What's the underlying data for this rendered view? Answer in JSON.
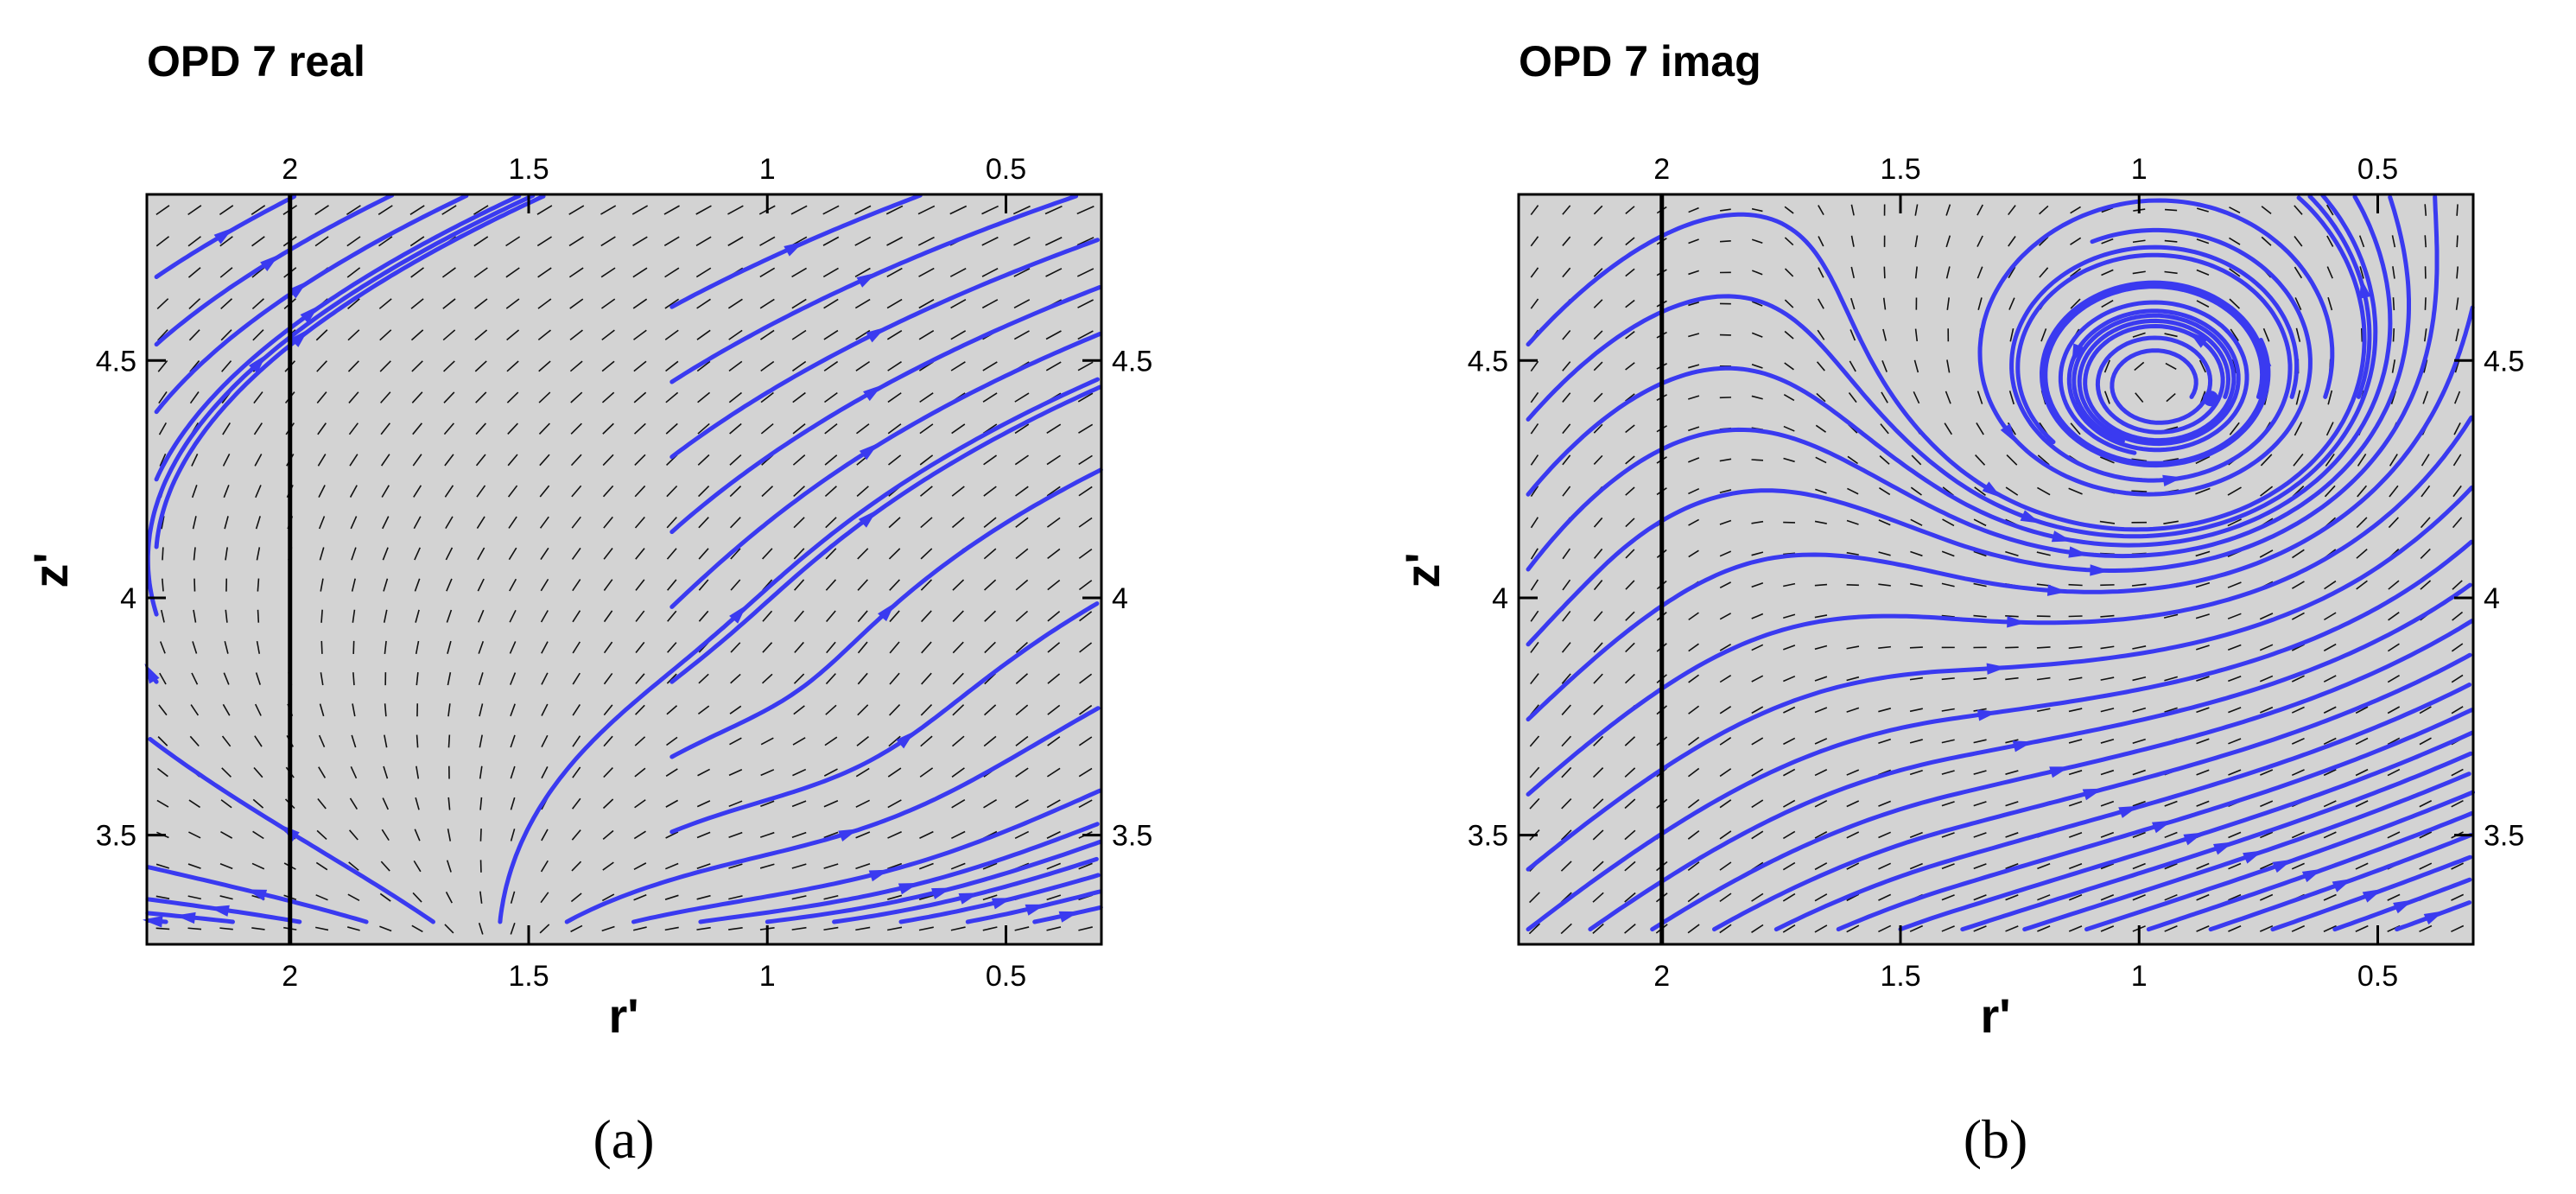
{
  "chart_data": [
    {
      "type": "streamline",
      "title": "OPD 7 real",
      "xlabel": "r'",
      "ylabel": "z'",
      "xlim": [
        2.3,
        0.3
      ],
      "ylim": [
        3.27,
        4.85
      ],
      "x_reversed": true,
      "xticks": [
        2,
        1.5,
        1,
        0.5
      ],
      "xtick_labels": [
        "2",
        "1.5",
        "1",
        "0.5"
      ],
      "yticks": [
        3.5,
        4,
        4.5
      ],
      "ytick_labels": [
        "3.5",
        "4",
        "4.5"
      ],
      "reference_line_r": 2,
      "grid": false,
      "background_color": "#d3d3d3",
      "streamline_color": "#3a3af0",
      "vector_color": "#111111",
      "caption": "(a)"
    },
    {
      "type": "streamline",
      "title": "OPD 7 imag",
      "xlabel": "r'",
      "ylabel": "z'",
      "xlim": [
        2.3,
        0.3
      ],
      "ylim": [
        3.27,
        4.85
      ],
      "x_reversed": true,
      "xticks": [
        2,
        1.5,
        1,
        0.5
      ],
      "xtick_labels": [
        "2",
        "1.5",
        "1",
        "0.5"
      ],
      "yticks": [
        3.5,
        4,
        4.5
      ],
      "ytick_labels": [
        "3.5",
        "4",
        "4.5"
      ],
      "reference_line_r": 2,
      "vortex_center": [
        0.85,
        4.42
      ],
      "grid": false,
      "background_color": "#d3d3d3",
      "streamline_color": "#3a3af0",
      "vector_color": "#111111",
      "caption": "(b)"
    }
  ]
}
